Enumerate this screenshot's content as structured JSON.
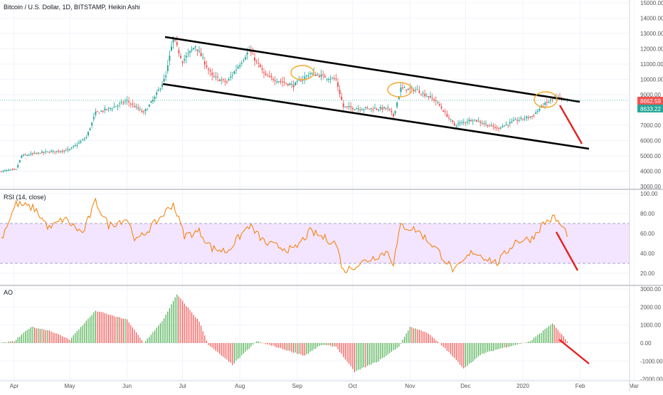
{
  "main_pane": {
    "title": "Bitcoin / U.S. Dollar, 1D, BITSTAMP, Heikin Ashi",
    "y_ticks": [
      "15000.00",
      "14000.00",
      "13000.00",
      "12000.00",
      "11000.00",
      "10000.00",
      "9000.00",
      "8000.00",
      "7000.00",
      "6000.00",
      "5000.00",
      "4000.00",
      "3000.00"
    ],
    "price_badge_1": "8662.59",
    "price_badge_2": "8633.22"
  },
  "rsi_pane": {
    "title": "RSI (14, close)",
    "y_ticks": [
      "100.00",
      "80.00",
      "60.00",
      "40.00",
      "20.00"
    ]
  },
  "ao_pane": {
    "title": "AO",
    "y_ticks": [
      "3000.00",
      "2000.00",
      "1000.00",
      "0.00",
      "-1000.00",
      "-2000.00"
    ]
  },
  "x_axis": {
    "labels": [
      "Apr",
      "May",
      "Jun",
      "Jul",
      "Aug",
      "Sep",
      "Oct",
      "Nov",
      "Dec",
      "2020",
      "Feb",
      "Mar"
    ]
  },
  "colors": {
    "up": "#26a69a",
    "down": "#ef5350",
    "up_bar": "#4caf50",
    "rsi_line": "#f57c00",
    "rsi_band": "#f3e5ff",
    "trendline": "#000000",
    "arrow": "#e52222",
    "ellipse": "#f5a623",
    "badge1": "#ef5350",
    "badge2": "#26a69a",
    "grid": "#f0f3fa"
  },
  "chart_data": [
    {
      "type": "candlestick",
      "title": "Bitcoin / U.S. Dollar, 1D, BITSTAMP, Heikin Ashi",
      "ylim": [
        3000,
        15000
      ],
      "x_labels": [
        "Apr",
        "May",
        "Jun",
        "Jul",
        "Aug",
        "Sep",
        "Oct",
        "Nov",
        "Dec",
        "2020",
        "Feb",
        "Mar"
      ],
      "date_range": [
        "2019-03-25",
        "2020-01-25"
      ],
      "close_anchors": [
        {
          "date": "2019-03-25",
          "value": 4000
        },
        {
          "date": "2019-04-02",
          "value": 4100
        },
        {
          "date": "2019-04-05",
          "value": 5000
        },
        {
          "date": "2019-04-15",
          "value": 5200
        },
        {
          "date": "2019-05-01",
          "value": 5400
        },
        {
          "date": "2019-05-10",
          "value": 6200
        },
        {
          "date": "2019-05-15",
          "value": 7800
        },
        {
          "date": "2019-05-25",
          "value": 8200
        },
        {
          "date": "2019-06-01",
          "value": 8600
        },
        {
          "date": "2019-06-10",
          "value": 7800
        },
        {
          "date": "2019-06-16",
          "value": 8800
        },
        {
          "date": "2019-06-22",
          "value": 10200
        },
        {
          "date": "2019-06-26",
          "value": 12700
        },
        {
          "date": "2019-07-01",
          "value": 11200
        },
        {
          "date": "2019-07-08",
          "value": 12200
        },
        {
          "date": "2019-07-17",
          "value": 10200
        },
        {
          "date": "2019-07-25",
          "value": 9800
        },
        {
          "date": "2019-08-06",
          "value": 11900
        },
        {
          "date": "2019-08-15",
          "value": 10200
        },
        {
          "date": "2019-08-30",
          "value": 9600
        },
        {
          "date": "2019-09-08",
          "value": 10400
        },
        {
          "date": "2019-09-22",
          "value": 10000
        },
        {
          "date": "2019-09-26",
          "value": 8200
        },
        {
          "date": "2019-10-05",
          "value": 8100
        },
        {
          "date": "2019-10-20",
          "value": 8100
        },
        {
          "date": "2019-10-23",
          "value": 7600
        },
        {
          "date": "2019-10-27",
          "value": 9400
        },
        {
          "date": "2019-11-05",
          "value": 9300
        },
        {
          "date": "2019-11-15",
          "value": 8600
        },
        {
          "date": "2019-11-25",
          "value": 7000
        },
        {
          "date": "2019-12-05",
          "value": 7400
        },
        {
          "date": "2019-12-18",
          "value": 6800
        },
        {
          "date": "2019-12-28",
          "value": 7300
        },
        {
          "date": "2020-01-06",
          "value": 7600
        },
        {
          "date": "2020-01-12",
          "value": 8300
        },
        {
          "date": "2020-01-18",
          "value": 8800
        },
        {
          "date": "2020-01-25",
          "value": 8640
        }
      ],
      "last_values": [
        8662.59,
        8633.22
      ]
    },
    {
      "type": "line",
      "title": "RSI (14, close)",
      "ylim": [
        10,
        100
      ],
      "bands": [
        30,
        70
      ],
      "anchors": [
        {
          "date": "2019-03-25",
          "value": 55
        },
        {
          "date": "2019-04-02",
          "value": 90
        },
        {
          "date": "2019-04-12",
          "value": 85
        },
        {
          "date": "2019-04-20",
          "value": 65
        },
        {
          "date": "2019-04-28",
          "value": 75
        },
        {
          "date": "2019-05-08",
          "value": 60
        },
        {
          "date": "2019-05-15",
          "value": 92
        },
        {
          "date": "2019-05-22",
          "value": 68
        },
        {
          "date": "2019-06-01",
          "value": 75
        },
        {
          "date": "2019-06-06",
          "value": 52
        },
        {
          "date": "2019-06-16",
          "value": 70
        },
        {
          "date": "2019-06-26",
          "value": 90
        },
        {
          "date": "2019-07-02",
          "value": 58
        },
        {
          "date": "2019-07-10",
          "value": 62
        },
        {
          "date": "2019-07-17",
          "value": 45
        },
        {
          "date": "2019-07-25",
          "value": 42
        },
        {
          "date": "2019-08-06",
          "value": 68
        },
        {
          "date": "2019-08-15",
          "value": 50
        },
        {
          "date": "2019-08-30",
          "value": 43
        },
        {
          "date": "2019-09-08",
          "value": 62
        },
        {
          "date": "2019-09-22",
          "value": 50
        },
        {
          "date": "2019-09-26",
          "value": 22
        },
        {
          "date": "2019-10-05",
          "value": 30
        },
        {
          "date": "2019-10-20",
          "value": 42
        },
        {
          "date": "2019-10-23",
          "value": 30
        },
        {
          "date": "2019-10-27",
          "value": 68
        },
        {
          "date": "2019-11-05",
          "value": 63
        },
        {
          "date": "2019-11-15",
          "value": 45
        },
        {
          "date": "2019-11-25",
          "value": 22
        },
        {
          "date": "2019-12-05",
          "value": 42
        },
        {
          "date": "2019-12-18",
          "value": 30
        },
        {
          "date": "2019-12-28",
          "value": 52
        },
        {
          "date": "2020-01-06",
          "value": 55
        },
        {
          "date": "2020-01-12",
          "value": 70
        },
        {
          "date": "2020-01-18",
          "value": 76
        },
        {
          "date": "2020-01-25",
          "value": 60
        }
      ]
    },
    {
      "type": "bar",
      "title": "AO",
      "ylim": [
        -2200,
        3000
      ],
      "anchors": [
        {
          "date": "2019-03-25",
          "value": 0
        },
        {
          "date": "2019-04-01",
          "value": 100
        },
        {
          "date": "2019-04-10",
          "value": 900
        },
        {
          "date": "2019-04-20",
          "value": 700
        },
        {
          "date": "2019-05-01",
          "value": 200
        },
        {
          "date": "2019-05-15",
          "value": 1800
        },
        {
          "date": "2019-05-25",
          "value": 1500
        },
        {
          "date": "2019-06-01",
          "value": 1300
        },
        {
          "date": "2019-06-10",
          "value": 0
        },
        {
          "date": "2019-06-20",
          "value": 1200
        },
        {
          "date": "2019-06-28",
          "value": 2700
        },
        {
          "date": "2019-07-10",
          "value": 1200
        },
        {
          "date": "2019-07-15",
          "value": -100
        },
        {
          "date": "2019-07-28",
          "value": -1200
        },
        {
          "date": "2019-08-10",
          "value": 100
        },
        {
          "date": "2019-08-20",
          "value": -200
        },
        {
          "date": "2019-09-05",
          "value": -700
        },
        {
          "date": "2019-09-14",
          "value": -100
        },
        {
          "date": "2019-09-22",
          "value": -200
        },
        {
          "date": "2019-10-02",
          "value": -1600
        },
        {
          "date": "2019-10-15",
          "value": -1000
        },
        {
          "date": "2019-10-26",
          "value": -200
        },
        {
          "date": "2019-11-01",
          "value": 900
        },
        {
          "date": "2019-11-10",
          "value": 600
        },
        {
          "date": "2019-11-20",
          "value": -300
        },
        {
          "date": "2019-11-30",
          "value": -1400
        },
        {
          "date": "2019-12-10",
          "value": -600
        },
        {
          "date": "2019-12-20",
          "value": -300
        },
        {
          "date": "2020-01-05",
          "value": 100
        },
        {
          "date": "2020-01-17",
          "value": 1100
        },
        {
          "date": "2020-01-25",
          "value": 100
        }
      ]
    }
  ]
}
